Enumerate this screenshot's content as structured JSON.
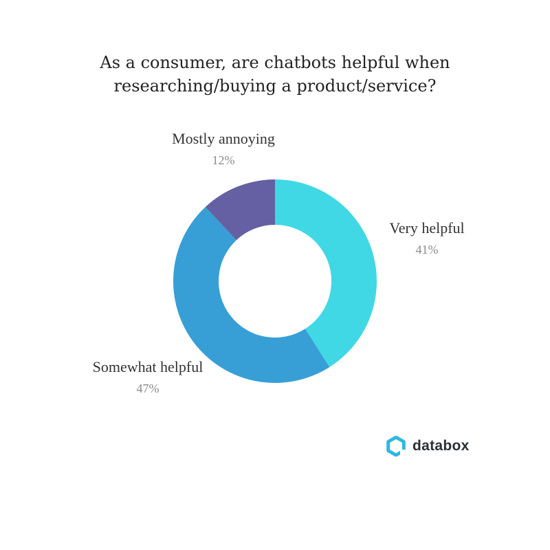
{
  "chart_data": {
    "type": "pie",
    "title_lines": [
      "As a consumer, are chatbots helpful when",
      "researching/buying a product/service?"
    ],
    "slices": [
      {
        "label": "Very helpful",
        "value": 41,
        "value_label": "41%",
        "color": "#41D8E6"
      },
      {
        "label": "Somewhat helpful",
        "value": 47,
        "value_label": "47%",
        "color": "#379FD6"
      },
      {
        "label": "Mostly annoying",
        "value": 12,
        "value_label": "12%",
        "color": "#6460A3"
      }
    ],
    "start_angle_deg": 0,
    "direction": "clockwise"
  },
  "branding": {
    "name": "databox",
    "logo_icon": "databox-logo-icon",
    "logo_color": "#2EB8DF"
  }
}
